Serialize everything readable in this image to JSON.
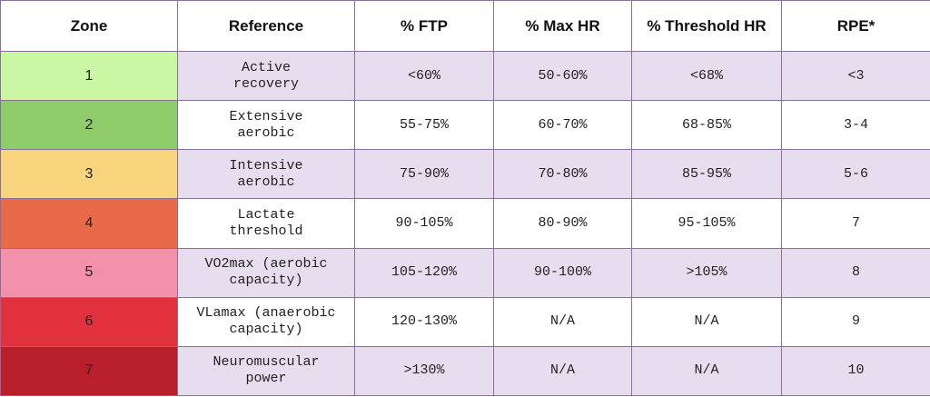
{
  "table": {
    "columns": [
      "Zone",
      "Reference",
      "% FTP",
      "% Max HR",
      "% Threshold HR",
      "RPE*"
    ],
    "rows": [
      [
        "1",
        "Active\nrecovery",
        "<60%",
        "50-60%",
        "<68%",
        "<3"
      ],
      [
        "2",
        "Extensive\naerobic",
        "55-75%",
        "60-70%",
        "68-85%",
        "3-4"
      ],
      [
        "3",
        "Intensive\naerobic",
        "75-90%",
        "70-80%",
        "85-95%",
        "5-6"
      ],
      [
        "4",
        "Lactate\nthreshold",
        "90-105%",
        "80-90%",
        "95-105%",
        "7"
      ],
      [
        "5",
        "VO2max (aerobic\ncapacity)",
        "105-120%",
        "90-100%",
        ">105%",
        "8"
      ],
      [
        "6",
        "VLamax (anaerobic\ncapacity)",
        "120-130%",
        "N/A",
        "N/A",
        "9"
      ],
      [
        "7",
        "Neuromuscular\npower",
        ">130%",
        "N/A",
        "N/A",
        "10"
      ]
    ]
  }
}
